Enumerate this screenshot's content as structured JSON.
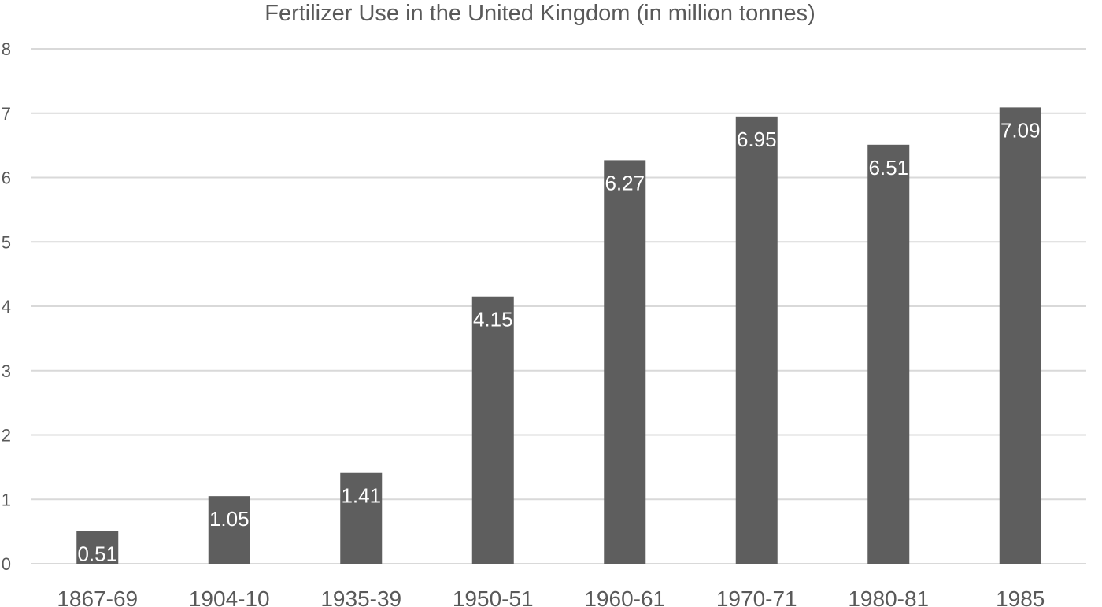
{
  "chart_data": {
    "type": "bar",
    "title": "Fertilizer Use in the United Kingdom (in million tonnes)",
    "xlabel": "",
    "ylabel": "",
    "categories": [
      "1867-69",
      "1904-10",
      "1935-39",
      "1950-51",
      "1960-61",
      "1970-71",
      "1980-81",
      "1985"
    ],
    "values": [
      0.51,
      1.05,
      1.41,
      4.15,
      6.27,
      6.95,
      6.51,
      7.09
    ],
    "data_labels": [
      "0.51",
      "1.05",
      "1.41",
      "4.15",
      "6.27",
      "6.95",
      "6.51",
      "7.09"
    ],
    "ylim": [
      0,
      8
    ],
    "yticks": [
      "0",
      "1",
      "2",
      "3",
      "4",
      "5",
      "6",
      "7",
      "8"
    ],
    "grid": true,
    "legend": "none",
    "colors": {
      "bar": "#5e5e5e",
      "grid": "#d9d9d9",
      "text": "#595959",
      "label": "#ffffff"
    }
  }
}
